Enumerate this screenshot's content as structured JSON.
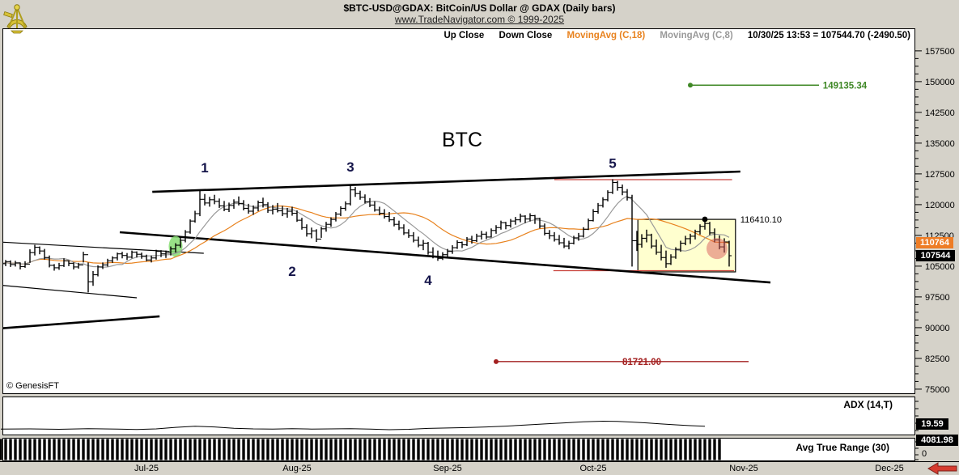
{
  "header": {
    "title": "$BTC-USD@GDAX:  BitCoin/US Dollar @ GDAX  (Daily bars)",
    "link": "www.TradeNavigator.com © 1999-2025",
    "logo": "genesisft-sextant-logo"
  },
  "legend": {
    "up_close": "Up Close",
    "down_close": "Down Close",
    "ma18": "MovingAvg (C,18)",
    "ma8": "MovingAvg (C,8)",
    "status": "10/30/25 13:53 = 107544.70 (-2490.50)"
  },
  "badges": {
    "ma_value": "110764",
    "close_value": "107544",
    "adx_value": "19.59",
    "atr_value": "4081.98",
    "atr_zero": "0"
  },
  "panels": {
    "adx_label": "ADX (14,T)",
    "atr_label": "Avg True Range (30)"
  },
  "watermark": "© GenesisFT",
  "axis": {
    "min": 75000,
    "max": 157500,
    "major_step": 7500,
    "minor_step": 1875
  },
  "months": [
    {
      "label": "Jul-25",
      "i": 30
    },
    {
      "label": "Aug-25",
      "i": 61
    },
    {
      "label": "Sep-25",
      "i": 92
    },
    {
      "label": "Oct-25",
      "i": 122
    },
    {
      "label": "Nov-25",
      "i": 153
    },
    {
      "label": "Dec-25",
      "i": 183
    }
  ],
  "colors": {
    "window_gray": "#d5d2c9",
    "ma_orange": "#e8821e",
    "ma_gray": "#999999",
    "level_green": "#3f8826",
    "level_dark_red": "#a32020",
    "zone_red": "#c8403a",
    "box_fill": "#ffffcf",
    "wave_label": "#15154a",
    "badge_orange": "#ee7d26",
    "highlight_green": "#86dc72",
    "highlight_pink": "#d95b5b",
    "arrow_red": "#d63c2f"
  },
  "chart_data": {
    "type": "ohlc-bar",
    "title": "BTC",
    "ylim": [
      73800,
      163000
    ],
    "bars": [
      [
        106800,
        104900,
        105600
      ],
      [
        106500,
        105000,
        106100
      ],
      [
        106400,
        104800,
        105400
      ],
      [
        106300,
        104900,
        105800
      ],
      [
        105900,
        104200,
        104900
      ],
      [
        106200,
        104600,
        105500
      ],
      [
        109100,
        105800,
        108300
      ],
      [
        110200,
        107600,
        109600
      ],
      [
        109800,
        107900,
        108700
      ],
      [
        109200,
        106600,
        107100
      ],
      [
        107600,
        104700,
        105200
      ],
      [
        105500,
        103900,
        104600
      ],
      [
        105800,
        104100,
        105100
      ],
      [
        106900,
        104800,
        106300
      ],
      [
        106400,
        105000,
        105700
      ],
      [
        105900,
        104200,
        104800
      ],
      [
        105800,
        104400,
        105300
      ],
      [
        108500,
        105900,
        107800
      ],
      [
        105900,
        98600,
        101200
      ],
      [
        103800,
        100200,
        102900
      ],
      [
        105200,
        102500,
        104800
      ],
      [
        105900,
        104300,
        105300
      ],
      [
        106800,
        104900,
        106300
      ],
      [
        107400,
        105800,
        107000
      ],
      [
        108300,
        106400,
        108000
      ],
      [
        108500,
        106900,
        107600
      ],
      [
        108200,
        106500,
        107200
      ],
      [
        108800,
        106900,
        108400
      ],
      [
        108600,
        107100,
        107900
      ],
      [
        108300,
        106800,
        107400
      ],
      [
        107800,
        106200,
        106500
      ],
      [
        107600,
        105900,
        107000
      ],
      [
        109000,
        106600,
        108600
      ],
      [
        108900,
        107200,
        108000
      ],
      [
        108800,
        107000,
        108200
      ],
      [
        109800,
        107600,
        109200
      ],
      [
        110600,
        108300,
        110100
      ],
      [
        111900,
        109500,
        111300
      ],
      [
        113800,
        110800,
        113300
      ],
      [
        116400,
        112900,
        116000
      ],
      [
        118500,
        115600,
        117800
      ],
      [
        123500,
        117200,
        121300
      ],
      [
        122600,
        119800,
        120400
      ],
      [
        121900,
        119500,
        121200
      ],
      [
        122400,
        120100,
        120800
      ],
      [
        121500,
        119200,
        119700
      ],
      [
        120900,
        118400,
        118900
      ],
      [
        120500,
        118200,
        119800
      ],
      [
        121300,
        119000,
        120600
      ],
      [
        122000,
        119800,
        120300
      ],
      [
        121100,
        118600,
        119100
      ],
      [
        120200,
        117800,
        118400
      ],
      [
        119800,
        117500,
        119200
      ],
      [
        121000,
        118400,
        120500
      ],
      [
        121700,
        119300,
        120000
      ],
      [
        120600,
        118000,
        118600
      ],
      [
        119900,
        117600,
        118900
      ],
      [
        120400,
        118100,
        118500
      ],
      [
        119700,
        117200,
        117800
      ],
      [
        119200,
        116800,
        118400
      ],
      [
        119500,
        117300,
        117900
      ],
      [
        118600,
        115800,
        116200
      ],
      [
        116800,
        113900,
        114400
      ],
      [
        115200,
        112200,
        112900
      ],
      [
        114400,
        111800,
        113600
      ],
      [
        114000,
        110900,
        111600
      ],
      [
        114600,
        111900,
        114100
      ],
      [
        115800,
        113400,
        115200
      ],
      [
        116900,
        114600,
        116400
      ],
      [
        118200,
        115900,
        117700
      ],
      [
        119600,
        117200,
        119100
      ],
      [
        120800,
        118500,
        120200
      ],
      [
        124600,
        119800,
        123600
      ],
      [
        124300,
        121900,
        122700
      ],
      [
        123400,
        121200,
        121800
      ],
      [
        122500,
        120300,
        120700
      ],
      [
        121600,
        119400,
        119900
      ],
      [
        120800,
        118300,
        118700
      ],
      [
        119500,
        117400,
        117900
      ],
      [
        118900,
        116600,
        117100
      ],
      [
        118200,
        115800,
        116300
      ],
      [
        117000,
        114700,
        115200
      ],
      [
        116100,
        113800,
        114300
      ],
      [
        115200,
        112600,
        113100
      ],
      [
        114000,
        111900,
        112400
      ],
      [
        113300,
        110800,
        111300
      ],
      [
        112200,
        109600,
        110100
      ],
      [
        111400,
        108900,
        110600
      ],
      [
        110900,
        107800,
        108400
      ],
      [
        109600,
        106900,
        107400
      ],
      [
        108800,
        106300,
        106900
      ],
      [
        108400,
        106500,
        107800
      ],
      [
        109200,
        107100,
        108600
      ],
      [
        110100,
        108000,
        109500
      ],
      [
        111300,
        109200,
        110800
      ],
      [
        111000,
        109400,
        110200
      ],
      [
        112100,
        109900,
        111600
      ],
      [
        112400,
        110500,
        111200
      ],
      [
        112900,
        110900,
        112300
      ],
      [
        113600,
        111500,
        112800
      ],
      [
        113400,
        111600,
        112100
      ],
      [
        114200,
        112000,
        113700
      ],
      [
        115000,
        112900,
        114400
      ],
      [
        116100,
        113900,
        115600
      ],
      [
        115800,
        114000,
        114900
      ],
      [
        116500,
        114400,
        116000
      ],
      [
        117000,
        115100,
        116300
      ],
      [
        117800,
        115700,
        117200
      ],
      [
        117400,
        115500,
        116500
      ],
      [
        117900,
        115900,
        117300
      ],
      [
        117500,
        115300,
        116600
      ],
      [
        116800,
        114200,
        114800
      ],
      [
        115400,
        112500,
        113000
      ],
      [
        113800,
        111600,
        112400
      ],
      [
        113300,
        111000,
        111500
      ],
      [
        112600,
        110200,
        110700
      ],
      [
        111900,
        109400,
        109900
      ],
      [
        111200,
        109100,
        110600
      ],
      [
        112400,
        110300,
        111900
      ],
      [
        113100,
        111200,
        112300
      ],
      [
        114500,
        112000,
        114000
      ],
      [
        116600,
        113800,
        116100
      ],
      [
        118900,
        115900,
        118300
      ],
      [
        120400,
        117800,
        119800
      ],
      [
        121800,
        119300,
        121200
      ],
      [
        123500,
        120800,
        123000
      ],
      [
        126200,
        122600,
        125400
      ],
      [
        125800,
        123400,
        124200
      ],
      [
        124900,
        122300,
        123100
      ],
      [
        123800,
        121000,
        121700
      ],
      [
        122400,
        104900,
        111200
      ],
      [
        113600,
        108700,
        110300
      ],
      [
        112800,
        109500,
        111800
      ],
      [
        113900,
        110800,
        112600
      ],
      [
        112900,
        109300,
        109900
      ],
      [
        111500,
        107800,
        108400
      ],
      [
        110200,
        106400,
        107100
      ],
      [
        108800,
        104600,
        105600
      ],
      [
        107900,
        105300,
        107200
      ],
      [
        109600,
        106800,
        109100
      ],
      [
        111200,
        108500,
        110600
      ],
      [
        112400,
        110100,
        111700
      ],
      [
        112900,
        110400,
        112300
      ],
      [
        113900,
        111500,
        113400
      ],
      [
        115200,
        112700,
        114700
      ],
      [
        116410,
        113900,
        115400
      ],
      [
        115800,
        112600,
        113100
      ],
      [
        114200,
        110800,
        111400
      ],
      [
        112500,
        109100,
        109700
      ],
      [
        111800,
        108300,
        110900
      ],
      [
        111200,
        104900,
        107544
      ]
    ],
    "ma_series": [
      {
        "name": "MovingAvg (C,18)",
        "period": 18,
        "color": "#e8821e"
      },
      {
        "name": "MovingAvg (C,8)",
        "period": 8,
        "color": "#999999"
      }
    ],
    "wave_labels": [
      {
        "text": "1",
        "i": 42,
        "price": 129100
      },
      {
        "text": "2",
        "i": 60,
        "price": 103800
      },
      {
        "text": "3",
        "i": 72,
        "price": 129300
      },
      {
        "text": "4",
        "i": 88,
        "price": 101600
      },
      {
        "text": "5",
        "i": 126,
        "price": 130100
      }
    ],
    "chart_title_pos": {
      "i": 95,
      "price": 135800
    },
    "levels": [
      {
        "label": "149135.34",
        "value": 149135.34,
        "i1": 142,
        "i2": 168.5,
        "label_i": 169.3,
        "anchor": "start",
        "color": "#3f8826"
      },
      {
        "label": "81721.00",
        "value": 81721.0,
        "i1": 102,
        "i2": 154,
        "label_i": 132,
        "anchor": "middle",
        "color": "#a32020"
      }
    ],
    "zone_lines": [
      {
        "value": 126100,
        "i1": 114,
        "i2": 150.6
      },
      {
        "value": 103900,
        "i1": 113.8,
        "i2": 151
      }
    ],
    "trendlines": [
      {
        "name": "upper-channel",
        "i1": 31.2,
        "p1": 123130,
        "i2": 152.3,
        "p2": 128070,
        "width": 2.6
      },
      {
        "name": "lower-channel",
        "i1": 24.5,
        "p1": 113270,
        "i2": 158.5,
        "p2": 101030,
        "width": 2.6
      },
      {
        "name": "left-channel-upper",
        "i1": -0.5,
        "p1": 110900,
        "i2": 41.8,
        "p2": 108140,
        "width": 1.2
      },
      {
        "name": "left-channel-lower",
        "i1": -0.5,
        "p1": 100400,
        "i2": 28,
        "p2": 97290,
        "width": 1.2
      },
      {
        "name": "rising-support",
        "i1": -0.5,
        "p1": 89790,
        "i2": 32.7,
        "p2": 92750,
        "width": 2.6
      }
    ],
    "box": {
      "i1": 131.2,
      "i2": 151.3,
      "top": 116410,
      "bottom": 103600
    },
    "swing_high": {
      "i": 145,
      "value": 116410.1,
      "label": "116410.10",
      "label_i": 152.3
    },
    "highlights": [
      {
        "type": "ellipse",
        "i": 36,
        "price": 109800,
        "color": "#86dc72"
      },
      {
        "type": "circle",
        "i": 147.5,
        "price": 109300,
        "color": "#d95b5b"
      }
    ],
    "adx": {
      "range": [
        0,
        90
      ],
      "points": [
        [
          0,
          13
        ],
        [
          6,
          13.5
        ],
        [
          12,
          12.5
        ],
        [
          18,
          14
        ],
        [
          24,
          13
        ],
        [
          28,
          12
        ],
        [
          32,
          13.5
        ],
        [
          36,
          17
        ],
        [
          40,
          19.5
        ],
        [
          44,
          18
        ],
        [
          48,
          15
        ],
        [
          52,
          13.5
        ],
        [
          56,
          13
        ],
        [
          60,
          14
        ],
        [
          64,
          13
        ],
        [
          68,
          13.5
        ],
        [
          72,
          14
        ],
        [
          76,
          13
        ],
        [
          80,
          11.5
        ],
        [
          84,
          12.5
        ],
        [
          88,
          14.5
        ],
        [
          92,
          15.5
        ],
        [
          96,
          16.5
        ],
        [
          100,
          18
        ],
        [
          104,
          20
        ],
        [
          108,
          22.5
        ],
        [
          112,
          25
        ],
        [
          116,
          27.5
        ],
        [
          120,
          30
        ],
        [
          124,
          31.5
        ],
        [
          127,
          31
        ],
        [
          130,
          29.5
        ],
        [
          133,
          27.5
        ],
        [
          136,
          25
        ],
        [
          139,
          23
        ],
        [
          142,
          21
        ],
        [
          145,
          19.59
        ]
      ]
    },
    "atr": {
      "bar_last_i": 148,
      "current": 4081.98
    }
  }
}
